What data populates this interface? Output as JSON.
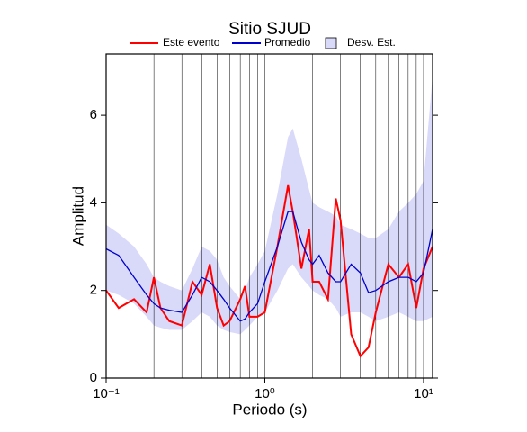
{
  "chart_data": {
    "type": "line",
    "title": "Sitio SJUD",
    "x_label": "Periodo (s)",
    "y_label": "Amplitud",
    "xlog": true,
    "grid": "x",
    "xlim": [
      0.1,
      11.4
    ],
    "ylim": [
      0,
      7.4
    ],
    "xticks": [
      {
        "value": 0.1,
        "label": "10⁻¹"
      },
      {
        "value": 1,
        "label": "10⁰"
      },
      {
        "value": 10,
        "label": "10¹"
      }
    ],
    "yticks": [
      0,
      2,
      4,
      6
    ],
    "x": [
      0.1,
      0.12,
      0.15,
      0.18,
      0.2,
      0.22,
      0.25,
      0.3,
      0.35,
      0.4,
      0.45,
      0.5,
      0.55,
      0.6,
      0.7,
      0.75,
      0.8,
      0.9,
      1.0,
      1.2,
      1.4,
      1.5,
      1.7,
      1.9,
      2.0,
      2.2,
      2.5,
      2.8,
      3.0,
      3.5,
      4.0,
      4.5,
      5,
      6,
      7,
      8,
      9,
      10,
      11.4
    ],
    "band": {
      "name": "Desv. Est.",
      "color": "#d9d9fa",
      "lower": [
        2.0,
        1.9,
        1.7,
        1.4,
        1.2,
        1.15,
        1.1,
        1.1,
        1.3,
        1.5,
        1.4,
        1.2,
        1.1,
        1.05,
        1.0,
        1.1,
        1.2,
        1.4,
        1.5,
        2.0,
        2.5,
        2.6,
        2.3,
        2.1,
        2.0,
        1.9,
        1.8,
        1.6,
        1.4,
        1.5,
        1.5,
        1.4,
        1.3,
        1.4,
        1.5,
        1.4,
        1.3,
        1.3,
        1.4
      ],
      "upper": [
        3.5,
        3.3,
        3.0,
        2.6,
        2.3,
        2.2,
        2.1,
        2.0,
        2.5,
        3.0,
        2.9,
        2.7,
        2.3,
        2.1,
        1.8,
        2.0,
        2.3,
        2.6,
        2.9,
        4.2,
        5.5,
        5.7,
        5.0,
        4.3,
        4.0,
        3.9,
        3.8,
        3.7,
        3.5,
        3.4,
        3.3,
        3.2,
        3.2,
        3.4,
        3.8,
        4.0,
        4.2,
        4.5,
        6.9
      ]
    },
    "series": [
      {
        "name": "Este evento",
        "color": "#ff0000",
        "values": [
          2.0,
          1.6,
          1.8,
          1.5,
          2.3,
          1.6,
          1.3,
          1.2,
          2.2,
          1.9,
          2.6,
          1.6,
          1.2,
          1.3,
          1.8,
          2.1,
          1.4,
          1.4,
          1.5,
          3.0,
          4.4,
          3.8,
          2.5,
          3.4,
          2.2,
          2.2,
          1.8,
          4.1,
          3.6,
          1.0,
          0.5,
          0.7,
          1.5,
          2.6,
          2.3,
          2.6,
          1.6,
          2.5,
          3.0
        ]
      },
      {
        "name": "Promedio",
        "color": "#0000cc",
        "values": [
          2.95,
          2.8,
          2.3,
          1.9,
          1.7,
          1.6,
          1.55,
          1.5,
          1.9,
          2.3,
          2.2,
          2.0,
          1.8,
          1.6,
          1.3,
          1.35,
          1.5,
          1.7,
          2.2,
          3.0,
          3.8,
          3.8,
          3.1,
          2.7,
          2.6,
          2.8,
          2.4,
          2.2,
          2.2,
          2.6,
          2.4,
          1.95,
          2.0,
          2.2,
          2.3,
          2.3,
          2.2,
          2.4,
          3.4
        ]
      }
    ]
  }
}
